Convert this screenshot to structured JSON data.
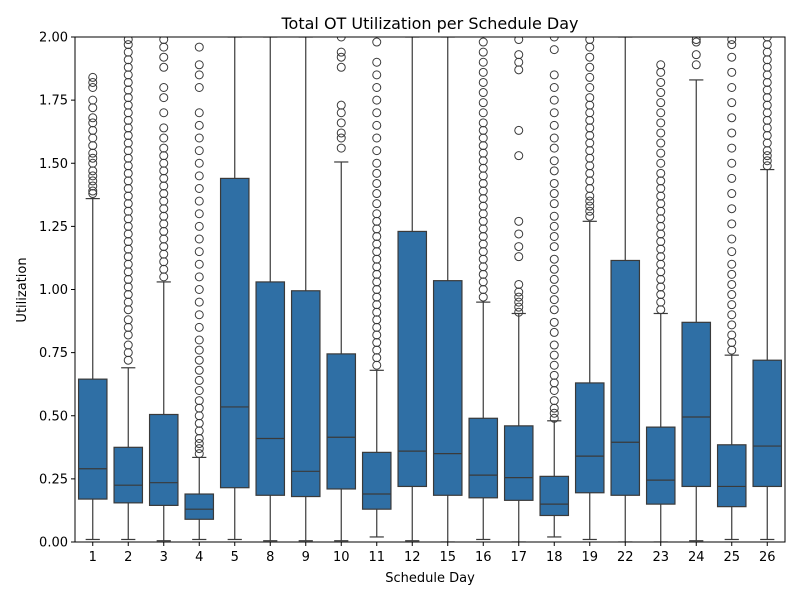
{
  "chart_data": {
    "type": "box",
    "title": "Total OT Utilization per Schedule Day",
    "xlabel": "Schedule Day",
    "ylabel": "Utilization",
    "ylim": [
      0,
      2
    ],
    "y_ticks": [
      "0.00",
      "0.25",
      "0.50",
      "0.75",
      "1.00",
      "1.25",
      "1.50",
      "1.75",
      "2.00"
    ],
    "y_tick_values": [
      0,
      0.25,
      0.5,
      0.75,
      1.0,
      1.25,
      1.5,
      1.75,
      2.0
    ],
    "box_color": "#2f6fa5",
    "line_color": "#3a3a3a",
    "categories": [
      "1",
      "2",
      "3",
      "4",
      "5",
      "8",
      "9",
      "10",
      "11",
      "12",
      "15",
      "16",
      "17",
      "18",
      "19",
      "22",
      "23",
      "24",
      "25",
      "26"
    ],
    "boxes": [
      {
        "day": "1",
        "whislo": 0.01,
        "q1": 0.17,
        "med": 0.29,
        "q3": 0.645,
        "whishi": 1.36,
        "fliers": [
          1.38,
          1.39,
          1.41,
          1.43,
          1.45,
          1.47,
          1.5,
          1.52,
          1.54,
          1.57,
          1.6,
          1.63,
          1.66,
          1.68,
          1.72,
          1.75,
          1.8,
          1.82,
          1.84
        ]
      },
      {
        "day": "2",
        "whislo": 0.01,
        "q1": 0.155,
        "med": 0.225,
        "q3": 0.375,
        "whishi": 0.69,
        "fliers": [
          0.72,
          0.75,
          0.78,
          0.82,
          0.85,
          0.88,
          0.92,
          0.95,
          0.98,
          1.01,
          1.04,
          1.07,
          1.1,
          1.13,
          1.16,
          1.19,
          1.22,
          1.25,
          1.28,
          1.31,
          1.34,
          1.37,
          1.4,
          1.43,
          1.46,
          1.49,
          1.52,
          1.55,
          1.58,
          1.61,
          1.64,
          1.67,
          1.7,
          1.73,
          1.76,
          1.79,
          1.82,
          1.85,
          1.88,
          1.91,
          1.94,
          1.97,
          1.99
        ]
      },
      {
        "day": "3",
        "whislo": 0.005,
        "q1": 0.145,
        "med": 0.235,
        "q3": 0.505,
        "whishi": 1.03,
        "fliers": [
          1.05,
          1.08,
          1.11,
          1.14,
          1.17,
          1.2,
          1.23,
          1.26,
          1.29,
          1.32,
          1.35,
          1.38,
          1.41,
          1.44,
          1.47,
          1.5,
          1.53,
          1.56,
          1.6,
          1.64,
          1.7,
          1.76,
          1.8,
          1.88,
          1.92,
          1.96,
          1.99
        ]
      },
      {
        "day": "4",
        "whislo": 0.01,
        "q1": 0.09,
        "med": 0.13,
        "q3": 0.19,
        "whishi": 0.335,
        "fliers": [
          0.35,
          0.37,
          0.39,
          0.41,
          0.44,
          0.47,
          0.5,
          0.53,
          0.56,
          0.6,
          0.64,
          0.68,
          0.72,
          0.76,
          0.8,
          0.85,
          0.9,
          0.95,
          1.0,
          1.05,
          1.1,
          1.15,
          1.2,
          1.25,
          1.3,
          1.35,
          1.4,
          1.45,
          1.5,
          1.55,
          1.6,
          1.65,
          1.7,
          1.8,
          1.85,
          1.89,
          1.96
        ]
      },
      {
        "day": "5",
        "whislo": 0.01,
        "q1": 0.215,
        "med": 0.535,
        "q3": 1.44,
        "whishi": 2.0,
        "fliers": []
      },
      {
        "day": "8",
        "whislo": 0.005,
        "q1": 0.185,
        "med": 0.41,
        "q3": 1.03,
        "whishi": 2.0,
        "fliers": []
      },
      {
        "day": "9",
        "whislo": 0.005,
        "q1": 0.18,
        "med": 0.28,
        "q3": 0.995,
        "whishi": 2.0,
        "fliers": []
      },
      {
        "day": "10",
        "whislo": 0.005,
        "q1": 0.21,
        "med": 0.415,
        "q3": 0.745,
        "whishi": 1.505,
        "fliers": [
          1.56,
          1.6,
          1.62,
          1.66,
          1.7,
          1.73,
          1.88,
          1.92,
          1.94,
          2.0
        ]
      },
      {
        "day": "11",
        "whislo": 0.02,
        "q1": 0.13,
        "med": 0.19,
        "q3": 0.355,
        "whishi": 0.68,
        "fliers": [
          0.7,
          0.73,
          0.76,
          0.79,
          0.82,
          0.85,
          0.88,
          0.91,
          0.94,
          0.97,
          1.0,
          1.03,
          1.06,
          1.09,
          1.12,
          1.15,
          1.18,
          1.21,
          1.24,
          1.27,
          1.3,
          1.34,
          1.38,
          1.42,
          1.46,
          1.5,
          1.55,
          1.6,
          1.65,
          1.7,
          1.75,
          1.8,
          1.85,
          1.9,
          1.98
        ]
      },
      {
        "day": "12",
        "whislo": 0.005,
        "q1": 0.22,
        "med": 0.36,
        "q3": 1.23,
        "whishi": 2.0,
        "fliers": []
      },
      {
        "day": "15",
        "whislo": 0.0,
        "q1": 0.185,
        "med": 0.35,
        "q3": 1.035,
        "whishi": 2.0,
        "fliers": []
      },
      {
        "day": "16",
        "whislo": 0.01,
        "q1": 0.175,
        "med": 0.265,
        "q3": 0.49,
        "whishi": 0.95,
        "fliers": [
          0.97,
          1.0,
          1.03,
          1.06,
          1.09,
          1.12,
          1.15,
          1.18,
          1.21,
          1.24,
          1.27,
          1.3,
          1.33,
          1.36,
          1.39,
          1.42,
          1.45,
          1.48,
          1.51,
          1.54,
          1.57,
          1.6,
          1.63,
          1.66,
          1.7,
          1.74,
          1.78,
          1.82,
          1.86,
          1.9,
          1.94,
          1.98
        ]
      },
      {
        "day": "17",
        "whislo": 0.0,
        "q1": 0.165,
        "med": 0.255,
        "q3": 0.46,
        "whishi": 0.905,
        "fliers": [
          0.91,
          0.93,
          0.95,
          0.97,
          0.99,
          1.02,
          1.13,
          1.17,
          1.22,
          1.27,
          1.53,
          1.63,
          1.87,
          1.9,
          1.93,
          1.99
        ]
      },
      {
        "day": "18",
        "whislo": 0.02,
        "q1": 0.105,
        "med": 0.15,
        "q3": 0.26,
        "whishi": 0.48,
        "fliers": [
          0.49,
          0.51,
          0.53,
          0.56,
          0.6,
          0.63,
          0.66,
          0.7,
          0.74,
          0.78,
          0.83,
          0.87,
          0.92,
          0.96,
          1.0,
          1.04,
          1.08,
          1.12,
          1.17,
          1.21,
          1.25,
          1.29,
          1.34,
          1.38,
          1.42,
          1.47,
          1.51,
          1.56,
          1.6,
          1.65,
          1.7,
          1.75,
          1.8,
          1.85,
          1.95,
          2.0
        ]
      },
      {
        "day": "19",
        "whislo": 0.01,
        "q1": 0.195,
        "med": 0.34,
        "q3": 0.63,
        "whishi": 1.27,
        "fliers": [
          1.29,
          1.31,
          1.33,
          1.35,
          1.37,
          1.4,
          1.43,
          1.46,
          1.49,
          1.52,
          1.55,
          1.58,
          1.61,
          1.64,
          1.67,
          1.7,
          1.73,
          1.76,
          1.8,
          1.84,
          1.88,
          1.92,
          1.96,
          1.99
        ]
      },
      {
        "day": "22",
        "whislo": 0.0,
        "q1": 0.185,
        "med": 0.395,
        "q3": 1.115,
        "whishi": 2.0,
        "fliers": []
      },
      {
        "day": "23",
        "whislo": 0.0,
        "q1": 0.15,
        "med": 0.245,
        "q3": 0.455,
        "whishi": 0.905,
        "fliers": [
          0.92,
          0.95,
          0.98,
          1.01,
          1.04,
          1.07,
          1.1,
          1.13,
          1.16,
          1.19,
          1.22,
          1.25,
          1.28,
          1.31,
          1.34,
          1.37,
          1.4,
          1.43,
          1.46,
          1.5,
          1.54,
          1.58,
          1.62,
          1.66,
          1.7,
          1.74,
          1.78,
          1.82,
          1.86,
          1.89
        ]
      },
      {
        "day": "24",
        "whislo": 0.005,
        "q1": 0.22,
        "med": 0.495,
        "q3": 0.87,
        "whishi": 1.83,
        "fliers": [
          1.89,
          1.93,
          1.98,
          1.99
        ]
      },
      {
        "day": "25",
        "whislo": 0.01,
        "q1": 0.14,
        "med": 0.22,
        "q3": 0.385,
        "whishi": 0.74,
        "fliers": [
          0.76,
          0.79,
          0.82,
          0.86,
          0.9,
          0.94,
          0.98,
          1.02,
          1.06,
          1.1,
          1.15,
          1.2,
          1.26,
          1.32,
          1.38,
          1.44,
          1.5,
          1.56,
          1.62,
          1.68,
          1.74,
          1.8,
          1.86,
          1.92,
          1.97,
          1.99
        ]
      },
      {
        "day": "26",
        "whislo": 0.01,
        "q1": 0.22,
        "med": 0.38,
        "q3": 0.72,
        "whishi": 1.475,
        "fliers": [
          1.49,
          1.51,
          1.53,
          1.55,
          1.58,
          1.61,
          1.64,
          1.67,
          1.7,
          1.73,
          1.76,
          1.79,
          1.82,
          1.85,
          1.88,
          1.91,
          1.94,
          1.97,
          2.0
        ]
      }
    ]
  }
}
